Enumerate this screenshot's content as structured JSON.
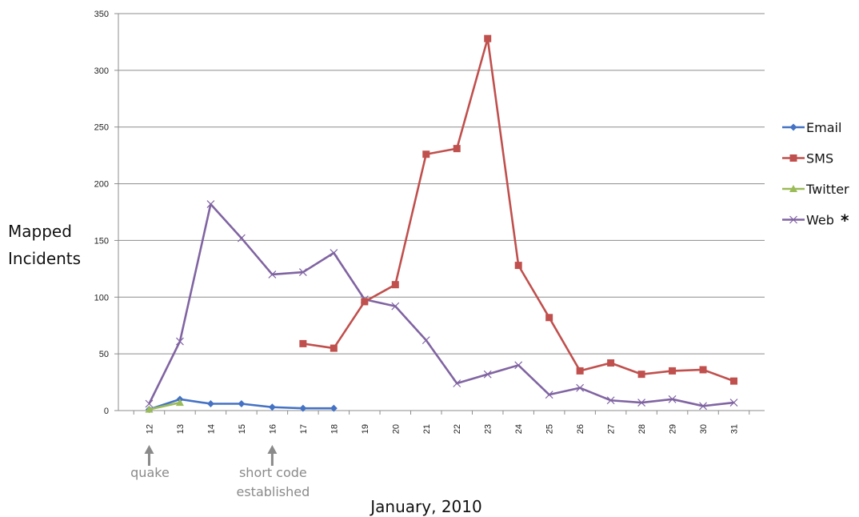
{
  "chart_data": {
    "type": "line",
    "title": "",
    "xlabel": "January, 2010",
    "ylabel": [
      "Mapped",
      "Incidents"
    ],
    "x": [
      "12",
      "13",
      "14",
      "15",
      "16",
      "17",
      "18",
      "19",
      "20",
      "21",
      "22",
      "23",
      "24",
      "25",
      "26",
      "27",
      "28",
      "29",
      "30",
      "31"
    ],
    "ylim": [
      0,
      350
    ],
    "yticks": [
      "0",
      "50",
      "100",
      "150",
      "200",
      "250",
      "300",
      "350"
    ],
    "grid": true,
    "legend_position": "right",
    "series": [
      {
        "name": "Email",
        "color": "#4472C4",
        "marker": "diamond",
        "values": [
          1,
          10,
          6,
          6,
          3,
          2,
          2,
          null,
          null,
          null,
          null,
          null,
          null,
          null,
          null,
          null,
          null,
          null,
          null,
          null
        ]
      },
      {
        "name": "SMS",
        "color": "#C0504D",
        "marker": "square",
        "values": [
          null,
          null,
          null,
          null,
          null,
          59,
          55,
          96,
          111,
          226,
          231,
          328,
          128,
          82,
          35,
          42,
          32,
          35,
          36,
          26
        ]
      },
      {
        "name": "Twitter",
        "color": "#9BBB59",
        "marker": "triangle",
        "values": [
          1,
          7,
          null,
          null,
          null,
          null,
          null,
          null,
          null,
          null,
          null,
          null,
          null,
          null,
          null,
          null,
          null,
          null,
          null,
          null
        ]
      },
      {
        "name": "Web",
        "color": "#8064A2",
        "marker": "x",
        "values": [
          6,
          61,
          182,
          152,
          120,
          122,
          139,
          98,
          92,
          62,
          24,
          32,
          40,
          14,
          20,
          9,
          7,
          10,
          4,
          7
        ]
      }
    ],
    "legend_note": "*",
    "annotations": [
      {
        "x": "12",
        "text": [
          "quake"
        ]
      },
      {
        "x": "16",
        "text": [
          "short code",
          "established"
        ]
      }
    ]
  }
}
